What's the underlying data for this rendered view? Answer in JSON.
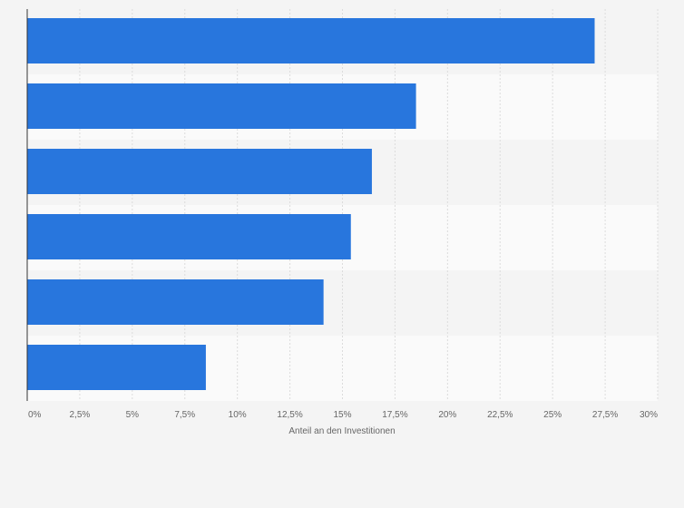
{
  "chart_data": {
    "type": "bar",
    "orientation": "horizontal",
    "categories": [
      "",
      "",
      "",
      "",
      "",
      ""
    ],
    "values": [
      27,
      18.5,
      16.4,
      15.4,
      14.1,
      8.5
    ],
    "xlabel": "Anteil an den Investitionen",
    "ylabel": "",
    "xlim": [
      0,
      30
    ],
    "tick_labels": [
      "0%",
      "2,5%",
      "5%",
      "7,5%",
      "10%",
      "12,5%",
      "15%",
      "17,5%",
      "20%",
      "22,5%",
      "25%",
      "27,5%",
      "30%"
    ],
    "grid": true,
    "legend": "none"
  },
  "colors": {
    "bar": "#2876dd",
    "background": "#f4f4f4",
    "band_light": "#fafafa",
    "band_dark": "#f4f4f4",
    "grid": "#dcdcdc",
    "axis": "#333333"
  }
}
